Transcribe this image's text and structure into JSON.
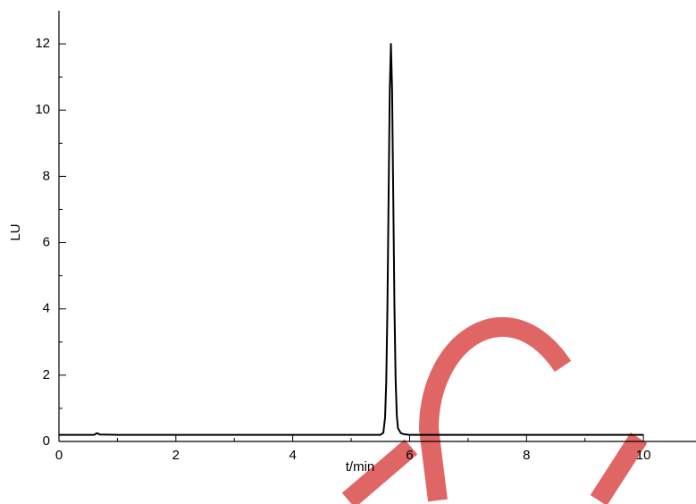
{
  "chart_data": {
    "type": "line",
    "x_label": "t/min",
    "y_label": "LU",
    "xlim": [
      0,
      10.9
    ],
    "ylim": [
      0,
      13
    ],
    "xticks": [
      0,
      2,
      4,
      6,
      8,
      10
    ],
    "yticks": [
      0,
      2,
      4,
      6,
      8,
      10,
      12
    ],
    "xminorticks": [
      1,
      3,
      5,
      7,
      9
    ],
    "yminorticks": [
      1,
      3,
      5,
      7,
      9,
      11
    ],
    "series": [
      {
        "color": "#000000",
        "x": [
          0,
          0.6,
          0.65,
          0.7,
          1,
          2,
          3,
          4,
          5,
          5.5,
          5.55,
          5.58,
          5.6,
          5.62,
          5.64,
          5.66,
          5.68,
          5.7,
          5.72,
          5.74,
          5.76,
          5.78,
          5.8,
          5.85,
          5.9,
          6,
          7,
          8,
          9,
          10
        ],
        "values": [
          0.2,
          0.2,
          0.25,
          0.21,
          0.2,
          0.2,
          0.2,
          0.2,
          0.2,
          0.2,
          0.26,
          0.72,
          1.8,
          4.03,
          7.36,
          10.6,
          12.0,
          10.6,
          7.4,
          4.1,
          1.9,
          0.8,
          0.4,
          0.25,
          0.22,
          0.2,
          0.2,
          0.2,
          0.2,
          0.2
        ]
      }
    ]
  }
}
